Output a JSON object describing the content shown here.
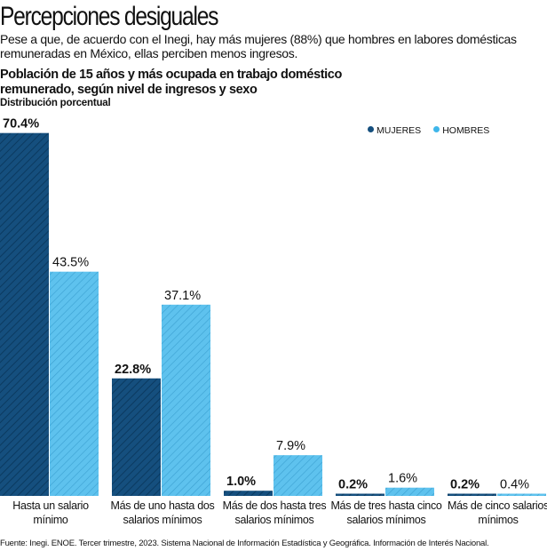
{
  "header": {
    "title": "Percepciones desiguales",
    "subtitle": "Pese a que, de acuerdo con el Inegi, hay más mujeres (88%) que hombres en labores domésticas remuneradas en México, ellas perciben menos ingresos."
  },
  "chart_data": {
    "type": "bar",
    "title": "Población de 15 años y más ocupada en trabajo doméstico remunerado, según nivel de ingresos y sexo",
    "ylabel": "Distribución porcentual",
    "categories": [
      "Hasta un salario mínimo",
      "Más de uno hasta dos salarios mínimos",
      "Más de dos hasta tres salarios mínimos",
      "Más de tres hasta cinco salarios mínimos",
      "Más de cinco salarios mínimos"
    ],
    "series": [
      {
        "name": "MUJERES",
        "values": [
          70.4,
          22.8,
          1.0,
          0.2,
          0.2
        ],
        "labels": [
          "70.4%",
          "22.8%",
          "1.0%",
          "0.2%",
          "0.2%"
        ],
        "color": "#154f7e"
      },
      {
        "name": "HOMBRES",
        "values": [
          43.5,
          37.1,
          7.9,
          1.6,
          0.4
        ],
        "labels": [
          "43.5%",
          "37.1%",
          "7.9%",
          "1.6%",
          "0.4%"
        ],
        "color": "#5ec2ee"
      }
    ],
    "legend": "top-right",
    "grid": false
  },
  "footer": {
    "source": "Fuente: Inegi. ENOE. Tercer trimestre, 2023. Sistema Nacional de Información Estadística y Geográfica. Información de Interés Nacional."
  }
}
